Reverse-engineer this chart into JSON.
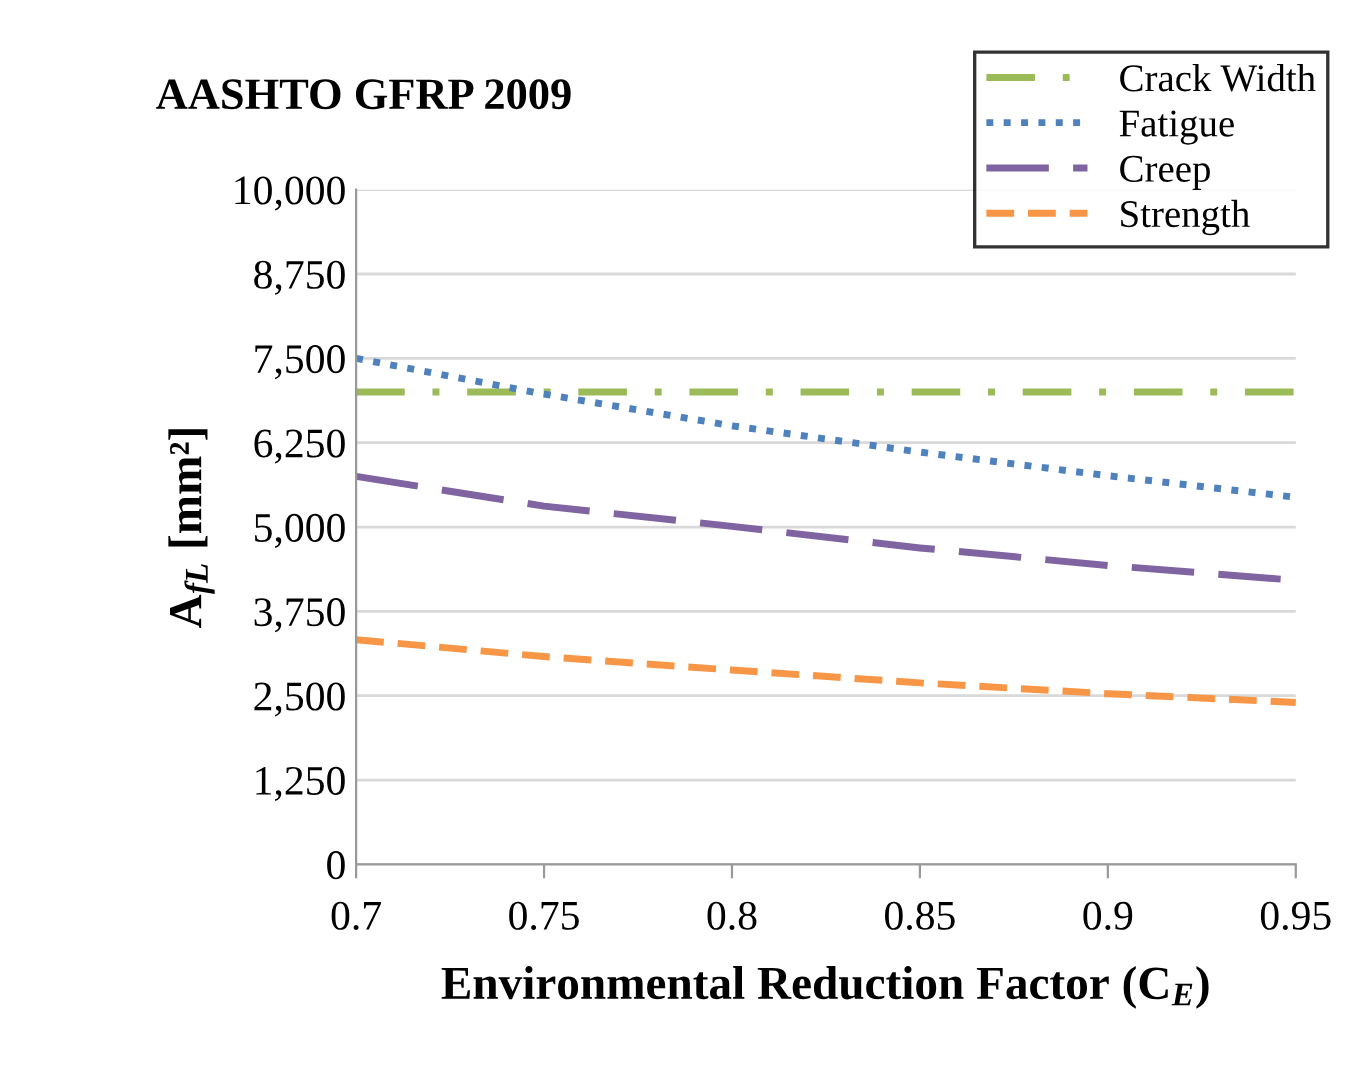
{
  "chart_data": {
    "type": "line",
    "title": "AASHTO GFRP 2009",
    "xlabel": "Environmental Reduction Factor (C$_{E}$)",
    "ylabel": "A$_{fL}$ [mm²]",
    "x": [
      0.7,
      0.75,
      0.8,
      0.85,
      0.9,
      0.95
    ],
    "series": [
      {
        "name": "Crack Width",
        "color": "#9bbb59",
        "line_style": "dashdot",
        "values": [
          7000,
          7000,
          7000,
          7000,
          7000,
          7000
        ]
      },
      {
        "name": "Fatigue",
        "color": "#4f81bd",
        "line_style": "dotted",
        "values": [
          7500,
          6970,
          6500,
          6110,
          5760,
          5440
        ]
      },
      {
        "name": "Creep",
        "color": "#8064a2",
        "line_style": "longdashed",
        "values": [
          5750,
          5310,
          5010,
          4690,
          4430,
          4210
        ]
      },
      {
        "name": "Strength",
        "color": "#f79646",
        "line_style": "dashed",
        "values": [
          3330,
          3080,
          2880,
          2690,
          2530,
          2400
        ]
      }
    ],
    "xlim": [
      0.7,
      0.95
    ],
    "xticks": [
      0.7,
      0.75,
      0.8,
      0.85,
      0.9,
      0.95
    ],
    "ylim": [
      0,
      10000
    ],
    "yticks": [
      {
        "value": 0,
        "label": "0"
      },
      {
        "value": 1250,
        "label": "1,250"
      },
      {
        "value": 2500,
        "label": "2,500"
      },
      {
        "value": 3750,
        "label": "3,750"
      },
      {
        "value": 5000,
        "label": "5,000"
      },
      {
        "value": 6250,
        "label": "6,250"
      },
      {
        "value": 7500,
        "label": "7,500"
      },
      {
        "value": 8750,
        "label": "8,750"
      },
      {
        "value": 10000,
        "label": "10,000"
      }
    ],
    "grid": "y",
    "legend": "top right",
    "marker": "none"
  }
}
